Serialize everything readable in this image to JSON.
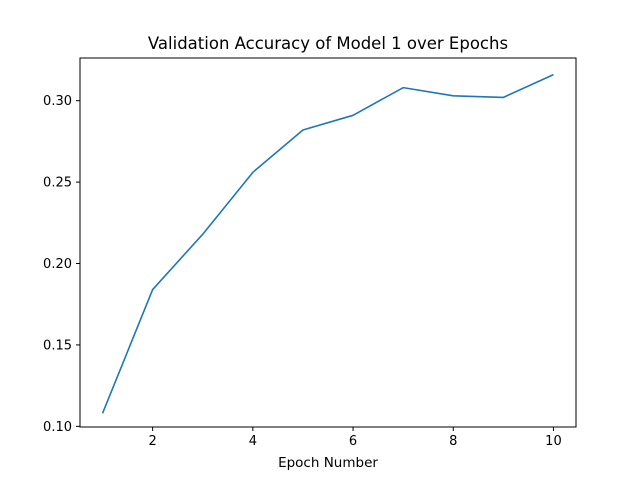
{
  "chart_data": {
    "type": "line",
    "title": "Validation Accuracy of Model 1 over Epochs",
    "xlabel": "Epoch Number",
    "ylabel": "",
    "x": [
      1,
      2,
      3,
      4,
      5,
      6,
      7,
      8,
      9,
      10
    ],
    "series": [
      {
        "values": [
          0.108,
          0.184,
          0.218,
          0.256,
          0.282,
          0.291,
          0.308,
          0.303,
          0.302,
          0.316
        ],
        "color": "#1f77b4"
      }
    ],
    "xlim": [
      0.55,
      10.45
    ],
    "ylim": [
      0.0996,
      0.3262
    ],
    "xticks": [
      2,
      4,
      6,
      8,
      10
    ],
    "xtick_labels": [
      "2",
      "4",
      "6",
      "8",
      "10"
    ],
    "yticks": [
      0.1,
      0.15,
      0.2,
      0.25,
      0.3
    ],
    "ytick_labels": [
      "0.10",
      "0.15",
      "0.20",
      "0.25",
      "0.30"
    ],
    "grid": false,
    "legend": "none"
  }
}
